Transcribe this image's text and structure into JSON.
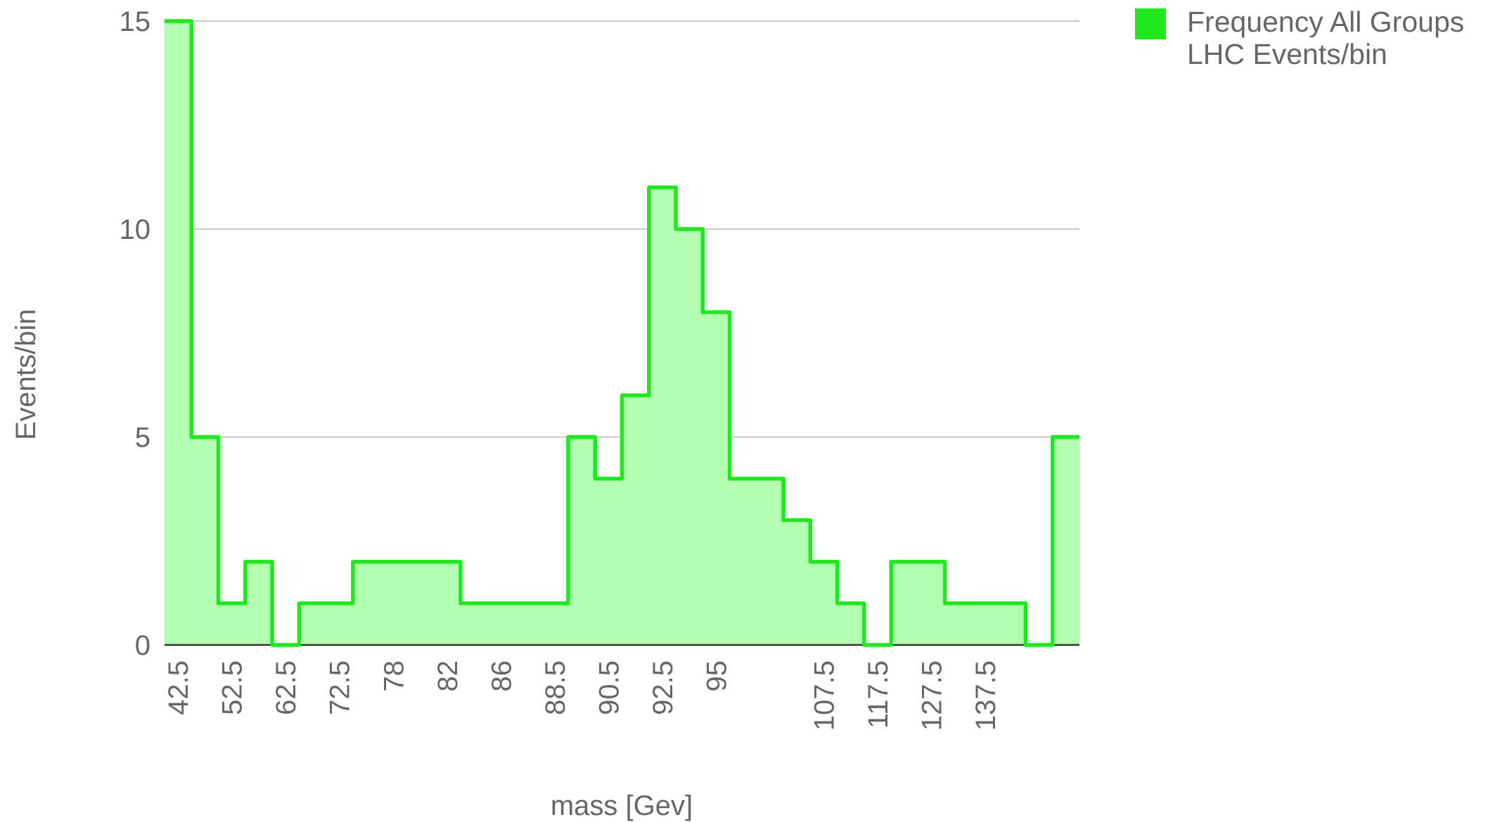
{
  "chart_data": {
    "type": "stepped-area",
    "x_label": "mass [Gev]",
    "y_label": "Events/bin",
    "categories": [
      "42.5",
      null,
      "52.5",
      null,
      "62.5",
      null,
      "72.5",
      null,
      "78",
      null,
      "82",
      null,
      "86",
      null,
      "88.5",
      null,
      "90.5",
      null,
      "92.5",
      null,
      "95",
      null,
      null,
      null,
      "107.5",
      null,
      "117.5",
      null,
      "127.5",
      null,
      "137.5",
      null,
      null,
      null
    ],
    "series": [
      {
        "name": "Frequency All Groups LHC Events/bin",
        "color": "#1ee81e",
        "fill": "#b3fdb0",
        "values": [
          15,
          5,
          1,
          2,
          0,
          1,
          1,
          2,
          2,
          2,
          2,
          1,
          1,
          1,
          1,
          5,
          4,
          6,
          11,
          10,
          8,
          4,
          4,
          3,
          2,
          1,
          0,
          2,
          2,
          1,
          1,
          1,
          0,
          5
        ]
      }
    ],
    "ylim": [
      0,
      15
    ],
    "yticks": [
      0,
      5,
      10,
      15
    ],
    "grid": true,
    "legend": "right"
  }
}
